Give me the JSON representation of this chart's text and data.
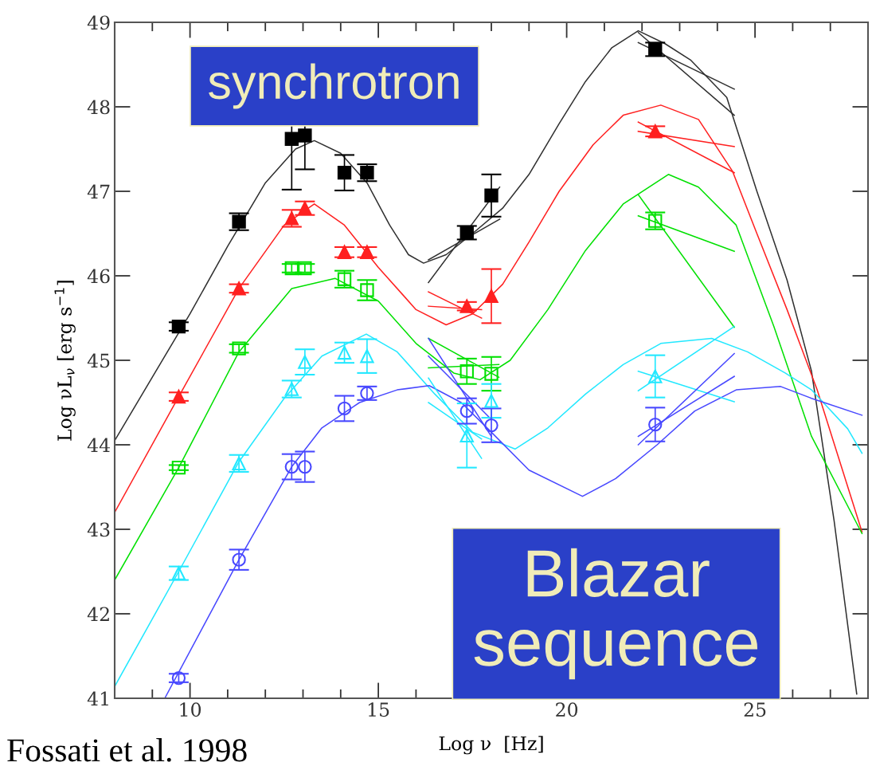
{
  "chart_data": {
    "type": "scatter",
    "xlabel": "Log ν  [Hz]",
    "ylabel": "Log νL$_{ν}$ [erg s$^{−1}$]",
    "x": [
      9.7,
      11.3,
      12.7,
      13.05,
      14.1,
      14.7,
      17.35,
      18.0,
      22.35
    ],
    "xlim": [
      8,
      28
    ],
    "ylim": [
      41,
      49
    ],
    "xticks": [
      {
        "value": 8,
        "label": null
      },
      {
        "value": 9,
        "label": null
      },
      10,
      {
        "value": 11,
        "label": null
      },
      {
        "value": 12,
        "label": null
      },
      {
        "value": 13,
        "label": null
      },
      {
        "value": 14,
        "label": null
      },
      15,
      {
        "value": 16,
        "label": null
      },
      {
        "value": 17,
        "label": null
      },
      {
        "value": 18,
        "label": null
      },
      {
        "value": 19,
        "label": null
      },
      20,
      {
        "value": 21,
        "label": null
      },
      {
        "value": 22,
        "label": null
      },
      {
        "value": 23,
        "label": null
      },
      {
        "value": 24,
        "label": null
      },
      25,
      {
        "value": 26,
        "label": null
      },
      {
        "value": 27,
        "label": null
      },
      {
        "value": 28,
        "label": null
      }
    ],
    "yticks": [
      41,
      42,
      43,
      44,
      45,
      46,
      47,
      48,
      49
    ],
    "grid": false,
    "legend": false,
    "series": [
      {
        "type": "line",
        "color": "#303030",
        "x": [
          8,
          9,
          10,
          11,
          12,
          12.8,
          13.3,
          14,
          14.7,
          15.3,
          15.8,
          16.2,
          16.8,
          17.5,
          18.3,
          19,
          19.8,
          20.5,
          21.2,
          21.9,
          22.6,
          23.3,
          24.25,
          25.05,
          25.85,
          26.5,
          27.1,
          27.7
        ],
        "values": [
          44.05,
          44.8,
          45.55,
          46.35,
          47.1,
          47.5,
          47.6,
          47.45,
          47.1,
          46.6,
          46.25,
          46.15,
          46.25,
          46.5,
          46.8,
          47.2,
          47.8,
          48.3,
          48.7,
          48.9,
          48.75,
          48.55,
          48.11,
          47.0,
          45.95,
          44.87,
          43.1,
          41.05
        ]
      },
      {
        "type": "line",
        "color": "#ff2020",
        "x": [
          8,
          9.7,
          11.3,
          12.5,
          13.3,
          14.1,
          15,
          16,
          16.8,
          17.5,
          18.3,
          19,
          19.8,
          20.7,
          21.5,
          22.5,
          23.5,
          24.4,
          25.05,
          25.85,
          26.65,
          27.84
        ],
        "values": [
          43.2,
          44.57,
          45.85,
          46.6,
          46.85,
          46.6,
          46.1,
          45.6,
          45.42,
          45.55,
          45.9,
          46.4,
          47.0,
          47.55,
          47.9,
          48.02,
          47.85,
          47.24,
          46.5,
          45.6,
          44.65,
          42.97
        ]
      },
      {
        "type": "line",
        "color": "#00e000",
        "x": [
          8,
          9.7,
          11.3,
          12.7,
          13.85,
          15,
          16,
          17,
          17.7,
          18.5,
          19.5,
          20.5,
          21.5,
          22.7,
          23.5,
          24.5,
          25.5,
          26.5,
          27.84
        ],
        "values": [
          42.4,
          43.73,
          45.1,
          45.85,
          45.97,
          45.7,
          45.2,
          44.85,
          44.77,
          45.0,
          45.6,
          46.3,
          46.85,
          47.2,
          47.05,
          46.6,
          45.4,
          44.1,
          42.95
        ]
      },
      {
        "type": "line",
        "color": "#22e8ff",
        "x": [
          8,
          9.7,
          11.3,
          12.5,
          13.5,
          14.68,
          15.5,
          16.5,
          17.5,
          18.63,
          19.5,
          20.5,
          21.5,
          22.5,
          23.85,
          24.8,
          25.8,
          26.5,
          27.46,
          27.84
        ],
        "values": [
          41.14,
          42.5,
          43.8,
          44.55,
          45.05,
          45.31,
          45.1,
          44.6,
          44.15,
          43.95,
          44.2,
          44.6,
          44.95,
          45.2,
          45.26,
          45.1,
          44.85,
          44.65,
          44.19,
          43.9
        ]
      },
      {
        "type": "line",
        "color": "#4848ff",
        "x": [
          9.33,
          11.3,
          12.7,
          13.5,
          14.5,
          15.5,
          16.35,
          17.2,
          18,
          19,
          20.42,
          21.3,
          22.4,
          23.4,
          24.5,
          25.68,
          26.5,
          27.84
        ],
        "values": [
          41.0,
          42.64,
          43.74,
          44.2,
          44.5,
          44.65,
          44.7,
          44.5,
          44.15,
          43.7,
          43.39,
          43.6,
          44.0,
          44.4,
          44.65,
          44.69,
          44.55,
          44.35
        ]
      },
      {
        "type": "line",
        "color": "#303030",
        "x": [
          21.9,
          24.45
        ],
        "values": [
          48.88,
          47.9
        ]
      },
      {
        "type": "line",
        "color": "#303030",
        "x": [
          21.9,
          24.45
        ],
        "values": [
          48.76,
          48.21
        ]
      },
      {
        "type": "line",
        "color": "#303030",
        "x": [
          16.33,
          18.22
        ],
        "values": [
          46.19,
          46.67
        ]
      },
      {
        "type": "line",
        "color": "#303030",
        "x": [
          16.33,
          18.22
        ],
        "values": [
          45.92,
          47.05
        ]
      },
      {
        "type": "line",
        "color": "#ff2020",
        "x": [
          21.9,
          24.45
        ],
        "values": [
          47.82,
          47.22
        ]
      },
      {
        "type": "line",
        "color": "#ff2020",
        "x": [
          21.9,
          24.45
        ],
        "values": [
          47.71,
          47.53
        ]
      },
      {
        "type": "line",
        "color": "#ff2020",
        "x": [
          16.33,
          17.74
        ],
        "values": [
          45.81,
          45.5
        ]
      },
      {
        "type": "line",
        "color": "#ff2020",
        "x": [
          16.33,
          17.74
        ],
        "values": [
          45.64,
          45.6
        ]
      },
      {
        "type": "line",
        "color": "#00e000",
        "x": [
          21.9,
          24.45
        ],
        "values": [
          46.96,
          45.39
        ]
      },
      {
        "type": "line",
        "color": "#00e000",
        "x": [
          21.9,
          24.45
        ],
        "values": [
          46.71,
          46.29
        ]
      },
      {
        "type": "line",
        "color": "#00e000",
        "x": [
          16.33,
          18.2
        ],
        "values": [
          45.26,
          44.8
        ]
      },
      {
        "type": "line",
        "color": "#00e000",
        "x": [
          16.33,
          18.2
        ],
        "values": [
          44.91,
          44.95
        ]
      },
      {
        "type": "line",
        "color": "#22e8ff",
        "x": [
          21.9,
          24.45
        ],
        "values": [
          44.87,
          44.51
        ]
      },
      {
        "type": "line",
        "color": "#22e8ff",
        "x": [
          21.9,
          24.45
        ],
        "values": [
          44.64,
          45.4
        ]
      },
      {
        "type": "line",
        "color": "#22e8ff",
        "x": [
          16.33,
          17.74
        ],
        "values": [
          44.79,
          43.84
        ]
      },
      {
        "type": "line",
        "color": "#22e8ff",
        "x": [
          16.33,
          17.74
        ],
        "values": [
          44.5,
          44.07
        ]
      },
      {
        "type": "line",
        "color": "#4848ff",
        "x": [
          21.9,
          24.45
        ],
        "values": [
          44.1,
          44.81
        ]
      },
      {
        "type": "line",
        "color": "#4848ff",
        "x": [
          21.9,
          24.45
        ],
        "values": [
          44.0,
          45.08
        ]
      },
      {
        "type": "line",
        "color": "#4848ff",
        "x": [
          16.33,
          18.0
        ],
        "values": [
          45.26,
          44.1
        ]
      },
      {
        "type": "line",
        "color": "#4848ff",
        "x": [
          16.33,
          18.0
        ],
        "values": [
          45.05,
          44.3
        ]
      },
      {
        "color": "#000000",
        "marker": "square",
        "values": [
          45.4,
          46.64,
          47.62,
          47.66,
          47.22,
          47.22,
          46.51,
          46.95,
          48.68
        ],
        "errors": [
          0.05,
          0.1,
          0.6,
          0.4,
          0.21,
          0.1,
          0.08,
          0.25,
          0.08
        ]
      },
      {
        "color": "#ff2020",
        "marker": "triangle",
        "values": [
          44.57,
          45.85,
          46.68,
          46.8,
          46.28,
          46.28,
          45.64,
          45.76,
          47.71
        ],
        "errors": [
          0.05,
          0.05,
          0.1,
          0.08,
          0.06,
          0.06,
          0.05,
          0.32,
          0.06
        ]
      },
      {
        "color": "#00e000",
        "marker": "square",
        "values": [
          43.73,
          45.14,
          46.09,
          46.09,
          45.96,
          45.83,
          44.87,
          44.84,
          46.65
        ],
        "errors": [
          0.03,
          0.05,
          0.05,
          0.05,
          0.1,
          0.12,
          0.15,
          0.2,
          0.1
        ]
      },
      {
        "color": "#22e8ff",
        "marker": "triangle",
        "values": [
          42.48,
          43.78,
          44.66,
          44.98,
          45.09,
          45.05,
          44.11,
          44.52,
          44.81
        ],
        "errors": [
          0.08,
          0.1,
          0.1,
          0.15,
          0.12,
          0.2,
          0.38,
          0.2,
          0.25
        ]
      },
      {
        "color": "#4848ff",
        "marker": "circle",
        "values": [
          41.24,
          42.64,
          43.74,
          43.74,
          44.43,
          44.61,
          44.4,
          44.23,
          44.24
        ],
        "errors": [
          0.05,
          0.12,
          0.15,
          0.18,
          0.15,
          0.08,
          0.15,
          0.2,
          0.2
        ]
      }
    ],
    "annotations": [
      "synchrotron",
      "Blazar sequence",
      "Fossati et al. 1998"
    ]
  }
}
